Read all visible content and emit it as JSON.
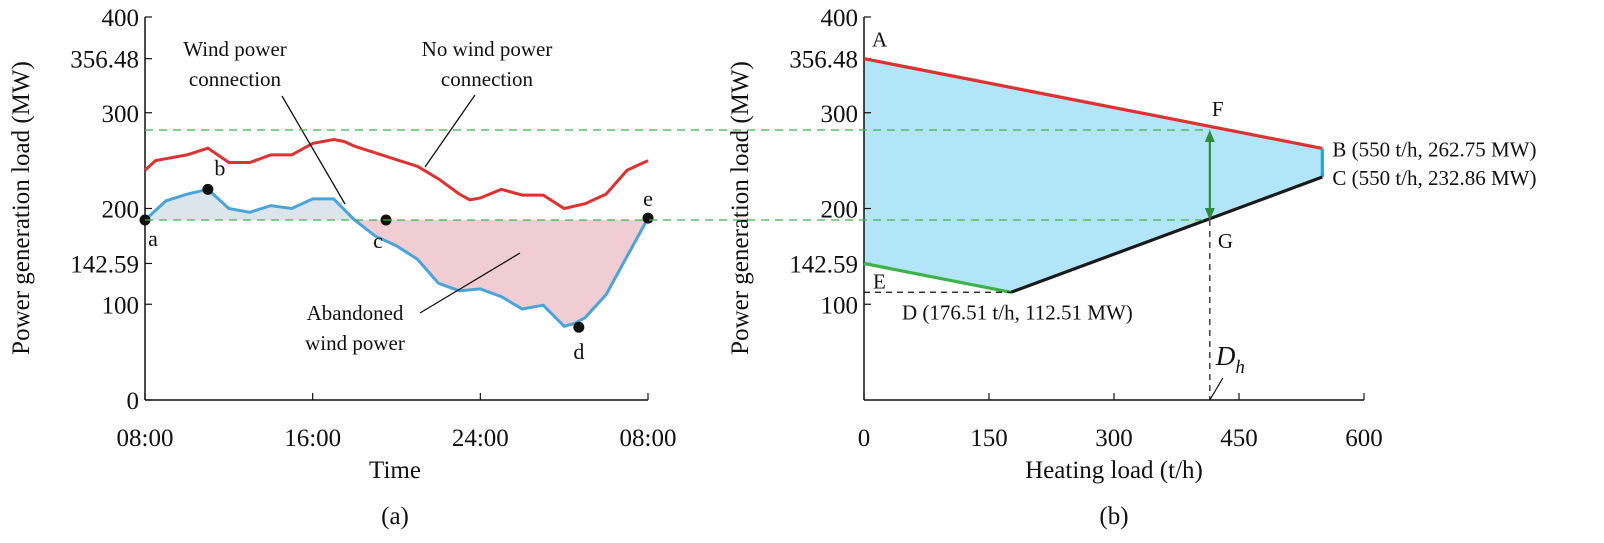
{
  "chart_data": [
    {
      "type": "line",
      "panel_label": "(a)",
      "xlabel": "Time",
      "ylabel": "Power generation load (MW)",
      "xticks": [
        "08:00",
        "16:00",
        "24:00",
        "08:00"
      ],
      "yticks": [
        "0",
        "100",
        "142.59",
        "200",
        "300",
        "356.48",
        "400"
      ],
      "ylim": [
        0,
        400
      ],
      "x_hours": [
        8,
        32
      ],
      "series": [
        {
          "name": "No wind power connection",
          "color": "#e03030",
          "x": [
            8,
            8.5,
            9,
            10,
            11,
            12,
            13,
            14,
            15,
            16,
            17,
            17.5,
            18,
            19,
            20,
            21,
            22,
            23,
            23.5,
            24,
            25,
            26,
            27,
            28,
            29,
            30,
            31,
            31.5,
            32
          ],
          "values": [
            240,
            250,
            252,
            256,
            263,
            248,
            248,
            256,
            256,
            268,
            272,
            270,
            265,
            258,
            251,
            244,
            231,
            215,
            209,
            211,
            220,
            214,
            214,
            200,
            205,
            215,
            240,
            245,
            250
          ]
        },
        {
          "name": "Wind power connection",
          "color": "#4aa3d9",
          "x": [
            8,
            9,
            10,
            11,
            12,
            13,
            14,
            15,
            16,
            17,
            18,
            19,
            20,
            21,
            22,
            23,
            24,
            25,
            26,
            27,
            28,
            28.5,
            29,
            30,
            31,
            32
          ],
          "values": [
            188,
            208,
            215,
            220,
            200,
            196,
            203,
            200,
            210,
            210,
            188,
            171,
            161,
            147,
            122,
            114,
            116,
            108,
            95,
            99,
            77,
            80,
            86,
            110,
            150,
            190
          ]
        }
      ],
      "threshold_lines": [
        282,
        188
      ],
      "points": [
        {
          "label": "a",
          "x": 8,
          "y": 188
        },
        {
          "label": "b",
          "x": 11,
          "y": 220
        },
        {
          "label": "c",
          "x": 19.5,
          "y": 188
        },
        {
          "label": "d",
          "x": 28.7,
          "y": 76
        },
        {
          "label": "e",
          "x": 32,
          "y": 190
        }
      ],
      "annotations": [
        "Wind power",
        "connection",
        "No wind power",
        "connection",
        "Abandoned",
        "wind power"
      ]
    },
    {
      "type": "area",
      "panel_label": "(b)",
      "xlabel": "Heating load (t/h)",
      "ylabel": "Power generation load (MW)",
      "xticks": [
        "0",
        "150",
        "300",
        "450",
        "600"
      ],
      "xlim": [
        0,
        600
      ],
      "yticks": [
        "100",
        "142.59",
        "200",
        "300",
        "356.48",
        "400"
      ],
      "ylim": [
        0,
        400
      ],
      "region_vertices": [
        {
          "label": "A",
          "x": 0,
          "y": 356.48
        },
        {
          "label": "B",
          "x": 550,
          "y": 262.75,
          "text": "B (550 t/h, 262.75 MW)"
        },
        {
          "label": "C",
          "x": 550,
          "y": 232.86,
          "text": "C (550 t/h, 232.86 MW)"
        },
        {
          "label": "D",
          "x": 176.51,
          "y": 112.51,
          "text": "D (176.51 t/h, 112.51 MW)"
        },
        {
          "label": "E",
          "x": 0,
          "y": 142.59
        }
      ],
      "region_color": "#b2e5f8",
      "edge_colors": {
        "AB": "#e03030",
        "BC": "#22a8e0",
        "CD": "#1a1a1a",
        "DE": "#3cb34a"
      },
      "points": [
        {
          "label": "F",
          "x": 415,
          "y": 282
        },
        {
          "label": "G",
          "x": 415,
          "y": 188
        }
      ],
      "arrow_color": "#2e8b3a",
      "dh_label": "D",
      "dh_sub": "h",
      "dh_x": 415
    }
  ]
}
